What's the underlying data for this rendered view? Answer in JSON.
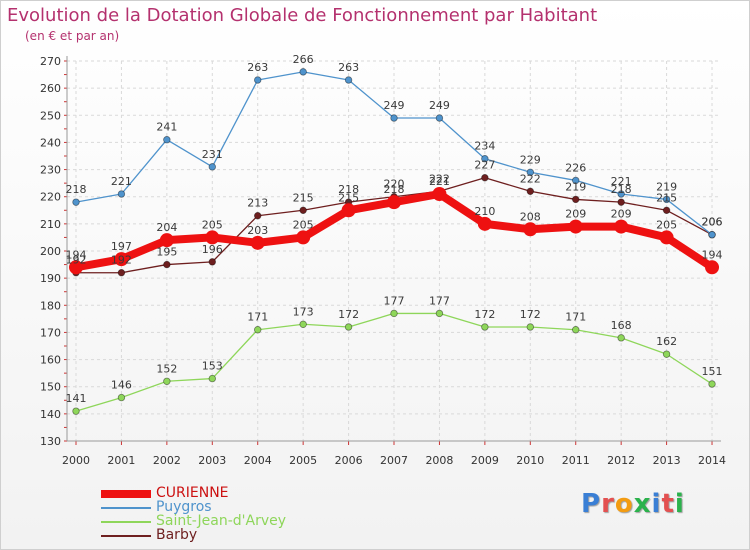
{
  "header": {
    "title": "Evolution de la Dotation Globale de Fonctionnement par Habitant",
    "subtitle": "(en € et par an)"
  },
  "logo": {
    "text": "Proxiti",
    "letter_colors": [
      "#3a7fd5",
      "#e35050",
      "#f39c12",
      "#2bb24c",
      "#3a7fd5",
      "#e35050",
      "#2bb24c"
    ]
  },
  "chart_data": {
    "type": "line",
    "x": [
      "2000",
      "2001",
      "2002",
      "2003",
      "2004",
      "2005",
      "2006",
      "2007",
      "2008",
      "2009",
      "2010",
      "2011",
      "2012",
      "2013",
      "2014"
    ],
    "yticks": [
      130,
      140,
      150,
      160,
      170,
      180,
      190,
      200,
      210,
      220,
      230,
      240,
      250,
      260,
      270
    ],
    "ylim": [
      130,
      270
    ],
    "grid": true,
    "legend_position": "bottom-left",
    "series": [
      {
        "name": "Barby",
        "color": "#6e1f1f",
        "values": [
          192,
          192,
          195,
          196,
          213,
          215,
          218,
          220,
          222,
          227,
          222,
          219,
          218,
          215,
          206
        ]
      },
      {
        "name": "Saint-Jean-d'Arvey",
        "color": "#8ed65a",
        "values": [
          141,
          146,
          152,
          153,
          171,
          173,
          172,
          177,
          177,
          172,
          172,
          171,
          168,
          162,
          151
        ]
      },
      {
        "name": "Puygros",
        "color": "#4f93cc",
        "values": [
          218,
          221,
          241,
          231,
          263,
          266,
          263,
          249,
          249,
          234,
          229,
          226,
          221,
          219,
          206
        ]
      },
      {
        "name": "CURIENNE",
        "color": "#ee1111",
        "values": [
          194,
          197,
          204,
          205,
          203,
          205,
          215,
          218,
          221,
          210,
          208,
          209,
          209,
          205,
          194
        ]
      }
    ],
    "legend": [
      "CURIENNE",
      "Puygros",
      "Saint-Jean-d'Arvey",
      "Barby"
    ]
  }
}
